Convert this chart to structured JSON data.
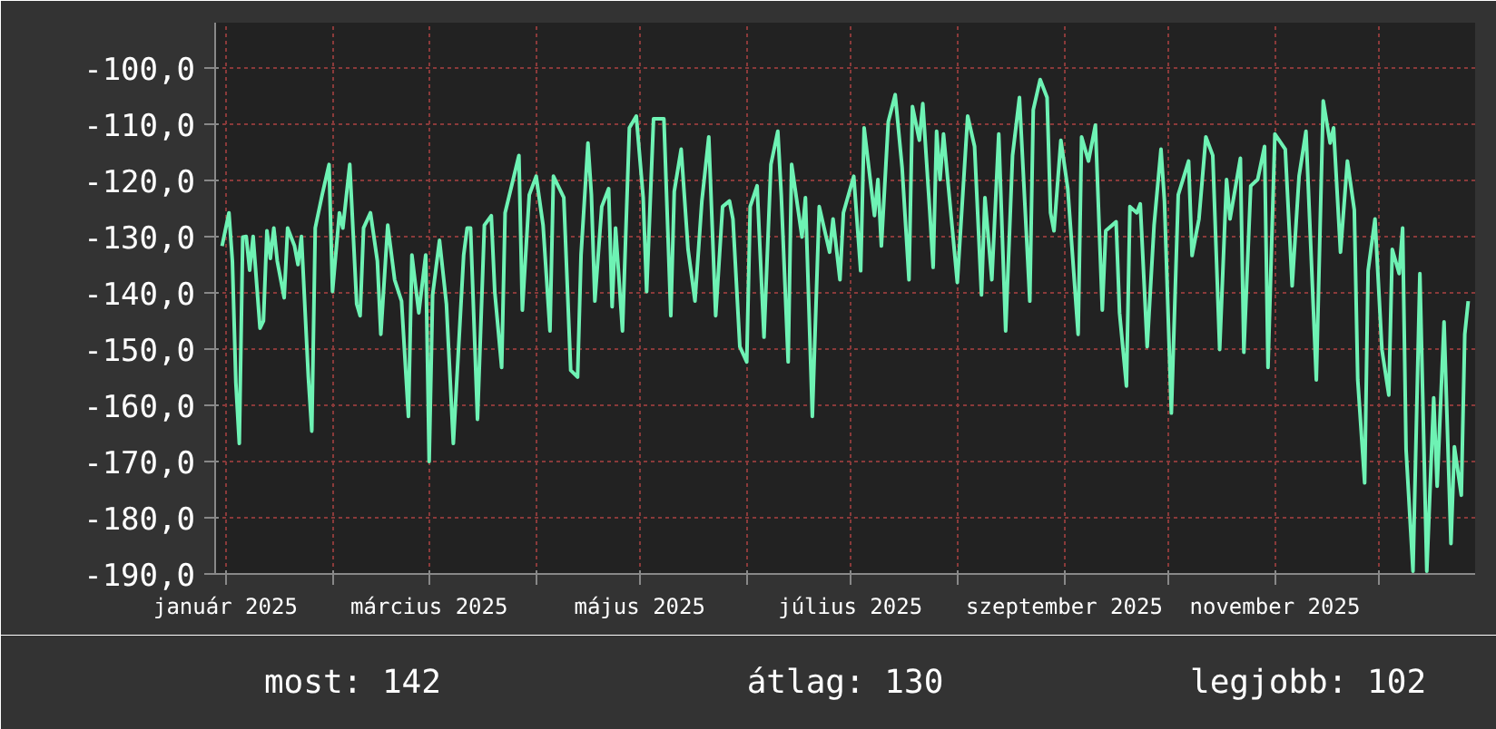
{
  "chart_data": {
    "type": "line",
    "x": [
      "2024-12-31",
      "2025-01-02",
      "2025-01-03",
      "2025-01-04",
      "2025-01-05",
      "2025-01-06",
      "2025-01-07",
      "2025-01-08",
      "2025-01-09",
      "2025-01-11",
      "2025-01-12",
      "2025-01-13",
      "2025-01-14",
      "2025-01-15",
      "2025-01-16",
      "2025-01-18",
      "2025-01-19",
      "2025-01-21",
      "2025-01-22",
      "2025-01-23",
      "2025-01-25",
      "2025-01-26",
      "2025-01-27",
      "2025-01-29",
      "2025-01-31",
      "2025-02-01",
      "2025-02-03",
      "2025-02-04",
      "2025-02-06",
      "2025-02-08",
      "2025-02-09",
      "2025-02-10",
      "2025-02-12",
      "2025-02-14",
      "2025-02-15",
      "2025-02-17",
      "2025-02-19",
      "2025-02-21",
      "2025-02-23",
      "2025-02-24",
      "2025-02-26",
      "2025-02-28",
      "2025-03-01",
      "2025-03-02",
      "2025-03-04",
      "2025-03-06",
      "2025-03-08",
      "2025-03-11",
      "2025-03-12",
      "2025-03-13",
      "2025-03-15",
      "2025-03-17",
      "2025-03-19",
      "2025-03-20",
      "2025-03-22",
      "2025-03-23",
      "2025-03-27",
      "2025-03-28",
      "2025-03-30",
      "2025-04-01",
      "2025-04-03",
      "2025-04-05",
      "2025-04-06",
      "2025-04-09",
      "2025-04-11",
      "2025-04-13",
      "2025-04-14",
      "2025-04-16",
      "2025-04-17",
      "2025-04-18",
      "2025-04-20",
      "2025-04-22",
      "2025-04-23",
      "2025-04-24",
      "2025-04-26",
      "2025-04-28",
      "2025-04-30",
      "2025-05-02",
      "2025-05-03",
      "2025-05-05",
      "2025-05-08",
      "2025-05-10",
      "2025-05-11",
      "2025-05-13",
      "2025-05-15",
      "2025-05-17",
      "2025-05-19",
      "2025-05-21",
      "2025-05-23",
      "2025-05-25",
      "2025-05-27",
      "2025-05-28",
      "2025-05-30",
      "2025-06-01",
      "2025-06-02",
      "2025-06-04",
      "2025-06-06",
      "2025-06-08",
      "2025-06-10",
      "2025-06-11",
      "2025-06-13",
      "2025-06-14",
      "2025-06-17",
      "2025-06-18",
      "2025-06-20",
      "2025-06-22",
      "2025-06-25",
      "2025-06-26",
      "2025-06-28",
      "2025-06-29",
      "2025-07-02",
      "2025-07-04",
      "2025-07-05",
      "2025-07-08",
      "2025-07-09",
      "2025-07-10",
      "2025-07-12",
      "2025-07-14",
      "2025-07-16",
      "2025-07-18",
      "2025-07-19",
      "2025-07-21",
      "2025-07-22",
      "2025-07-24",
      "2025-07-25",
      "2025-07-26",
      "2025-07-27",
      "2025-07-28",
      "2025-08-01",
      "2025-08-04",
      "2025-08-06",
      "2025-08-08",
      "2025-08-09",
      "2025-08-11",
      "2025-08-13",
      "2025-08-15",
      "2025-08-17",
      "2025-08-19",
      "2025-08-22",
      "2025-08-23",
      "2025-08-25",
      "2025-08-27",
      "2025-08-28",
      "2025-08-29",
      "2025-08-31",
      "2025-09-02",
      "2025-09-05",
      "2025-09-06",
      "2025-09-08",
      "2025-09-10",
      "2025-09-12",
      "2025-09-13",
      "2025-09-16",
      "2025-09-17",
      "2025-09-19",
      "2025-09-20",
      "2025-09-22",
      "2025-09-23",
      "2025-09-25",
      "2025-09-27",
      "2025-09-29",
      "2025-09-30",
      "2025-10-02",
      "2025-10-04",
      "2025-10-07",
      "2025-10-08",
      "2025-10-10",
      "2025-10-12",
      "2025-10-14",
      "2025-10-16",
      "2025-10-18",
      "2025-10-19",
      "2025-10-22",
      "2025-10-23",
      "2025-10-25",
      "2025-10-27",
      "2025-10-29",
      "2025-10-30",
      "2025-11-01",
      "2025-11-04",
      "2025-11-06",
      "2025-11-08",
      "2025-11-10",
      "2025-11-13",
      "2025-11-15",
      "2025-11-17",
      "2025-11-18",
      "2025-11-20",
      "2025-11-22",
      "2025-11-24",
      "2025-11-25",
      "2025-11-27",
      "2025-11-28",
      "2025-11-30",
      "2025-12-02",
      "2025-12-04",
      "2025-12-05",
      "2025-12-07",
      "2025-12-08",
      "2025-12-09",
      "2025-12-11",
      "2025-12-13",
      "2025-12-15",
      "2025-12-17",
      "2025-12-18",
      "2025-12-20",
      "2025-12-22",
      "2025-12-23",
      "2025-12-25",
      "2025-12-26",
      "2025-12-27"
    ],
    "series": [
      {
        "color": "#6ef2b4",
        "values": [
          -131.7,
          -125.8,
          -134.4,
          -156,
          -166.8,
          -130.1,
          -130,
          -136,
          -130,
          -146.3,
          -145,
          -129,
          -133.9,
          -128.5,
          -134.4,
          -140.9,
          -128.5,
          -131.7,
          -135,
          -130,
          -155,
          -164.6,
          -128.5,
          -122.6,
          -117.2,
          -139.8,
          -125.8,
          -128.5,
          -117.2,
          -142,
          -144.1,
          -128.5,
          -125.8,
          -134.4,
          -147.4,
          -128,
          -137.7,
          -141.5,
          -162,
          -133.3,
          -143.6,
          -133.3,
          -170,
          -140.4,
          -130.7,
          -142,
          -166.8,
          -133.3,
          -128.5,
          -128.5,
          -162.5,
          -128,
          -126.3,
          -139.8,
          -153.3,
          -125.8,
          -115.6,
          -143.1,
          -122.6,
          -119.3,
          -128,
          -146.8,
          -119.3,
          -123.1,
          -153.8,
          -155,
          -133.3,
          -113.4,
          -122.6,
          -141.5,
          -124.7,
          -121.5,
          -142.5,
          -128.5,
          -146.8,
          -110.7,
          -108.6,
          -123.1,
          -139.8,
          -109.1,
          -109.1,
          -144.1,
          -122,
          -114.5,
          -132.3,
          -141.5,
          -123.7,
          -112.3,
          -144.1,
          -124.7,
          -123.7,
          -126.9,
          -149.6,
          -152.3,
          -124.7,
          -121,
          -147.9,
          -117.2,
          -111.3,
          -122.6,
          -152.3,
          -117.2,
          -130.1,
          -123.1,
          -162,
          -124.7,
          -132.8,
          -126.9,
          -137.7,
          -125.8,
          -119.3,
          -136.1,
          -110.7,
          -126.3,
          -119.9,
          -131.7,
          -109.6,
          -104.8,
          -117.7,
          -137.7,
          -106.9,
          -112.9,
          -106.4,
          -125.3,
          -135.5,
          -111.3,
          -119.9,
          -111.8,
          -138.2,
          -108.6,
          -114,
          -140.4,
          -123.1,
          -137.7,
          -111.8,
          -146.8,
          -115.6,
          -105.3,
          -141.5,
          -107.5,
          -102.1,
          -105.3,
          -125.8,
          -129,
          -112.9,
          -121.5,
          -147.4,
          -112.3,
          -116.6,
          -110.2,
          -143.1,
          -129,
          -127.4,
          -143.6,
          -156.6,
          -124.7,
          -125.8,
          -124.2,
          -149.6,
          -128,
          -114.5,
          -123.7,
          -161.4,
          -122.6,
          -116.6,
          -133.4,
          -126.9,
          -112.3,
          -115.6,
          -150.1,
          -119.9,
          -126.9,
          -116.1,
          -150.6,
          -121,
          -119.9,
          -114,
          -153.3,
          -111.8,
          -114.5,
          -138.8,
          -119.3,
          -111.3,
          -155.5,
          -105.9,
          -113.4,
          -110.7,
          -132.8,
          -116.6,
          -125.3,
          -155.5,
          -173.8,
          -136.1,
          -126.9,
          -150.1,
          -158.2,
          -132.3,
          -136.6,
          -128.5,
          -167.9,
          -189.5,
          -136.6,
          -189.5,
          -158.7,
          -174.4,
          -145.2,
          -184.6,
          -167.4,
          -176,
          -147.4,
          -141.5
        ]
      }
    ],
    "xlim": [
      "2024-12-29",
      "2025-12-29"
    ],
    "xticks": [
      {
        "value": "2025-01-01",
        "label": "január 2025"
      },
      {
        "value": "2025-02-01",
        "label": null
      },
      {
        "value": "2025-03-01",
        "label": "március 2025"
      },
      {
        "value": "2025-04-01",
        "label": null
      },
      {
        "value": "2025-05-01",
        "label": "május 2025"
      },
      {
        "value": "2025-06-01",
        "label": null
      },
      {
        "value": "2025-07-01",
        "label": "július 2025"
      },
      {
        "value": "2025-08-01",
        "label": null
      },
      {
        "value": "2025-09-01",
        "label": "szeptember 2025"
      },
      {
        "value": "2025-10-01",
        "label": null
      },
      {
        "value": "2025-11-01",
        "label": "november 2025"
      },
      {
        "value": "2025-12-01",
        "label": null
      }
    ],
    "ylim": [
      -190,
      -92
    ],
    "yticks": [
      {
        "value": -190,
        "label": "-190,0"
      },
      {
        "value": -180,
        "label": "-180,0"
      },
      {
        "value": -170,
        "label": "-170,0"
      },
      {
        "value": -160,
        "label": "-160,0"
      },
      {
        "value": -150,
        "label": "-150,0"
      },
      {
        "value": -140,
        "label": "-140,0"
      },
      {
        "value": -130,
        "label": "-130,0"
      },
      {
        "value": -120,
        "label": "-120,0"
      },
      {
        "value": -110,
        "label": "-110,0"
      },
      {
        "value": -100,
        "label": "-100,0"
      }
    ],
    "grid": true,
    "marker": "none",
    "line_style": "solid",
    "annotations": [
      "most: 142",
      "átlag: 130",
      "legjobb: 102"
    ]
  }
}
